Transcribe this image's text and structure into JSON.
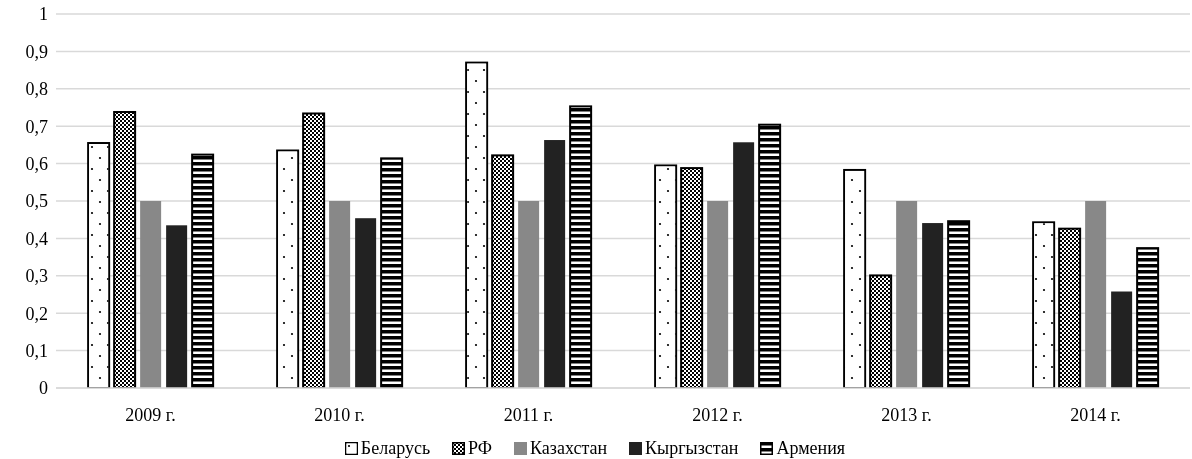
{
  "chart_data": {
    "type": "bar",
    "categories": [
      "2009 г.",
      "2010 г.",
      "2011 г.",
      "2012 г.",
      "2013 г.",
      "2014 г."
    ],
    "series": [
      {
        "name": "Беларусь",
        "color": "#ffffff",
        "values": [
          0.655,
          0.635,
          0.87,
          0.595,
          0.583,
          0.443
        ]
      },
      {
        "name": "РФ",
        "color": "#000000",
        "values": [
          0.738,
          0.734,
          0.622,
          0.588,
          0.301,
          0.426
        ]
      },
      {
        "name": "Казахстан",
        "color": "#888888",
        "values": [
          0.5,
          0.5,
          0.5,
          0.5,
          0.5,
          0.5
        ]
      },
      {
        "name": "Кыргызстан",
        "color": "#222222",
        "values": [
          0.435,
          0.454,
          0.663,
          0.657,
          0.441,
          0.258
        ]
      },
      {
        "name": "Армения",
        "color": "#000000",
        "values": [
          0.624,
          0.614,
          0.753,
          0.704,
          0.446,
          0.374
        ]
      }
    ],
    "ylim": [
      0,
      1
    ],
    "yticks": [
      0,
      {
        "value": 0.1,
        "label": "0,1"
      },
      {
        "value": 0.2,
        "label": "0,2"
      },
      {
        "value": 0.3,
        "label": "0,3"
      },
      {
        "value": 0.4,
        "label": "0,4"
      },
      {
        "value": 0.5,
        "label": "0,5"
      },
      {
        "value": 0.6,
        "label": "0,6"
      },
      {
        "value": 0.7,
        "label": "0,7"
      },
      {
        "value": 0.8,
        "label": "0,8"
      },
      {
        "value": 0.9,
        "label": "0,9"
      },
      1
    ],
    "grid": "y",
    "legend": "bottom"
  }
}
